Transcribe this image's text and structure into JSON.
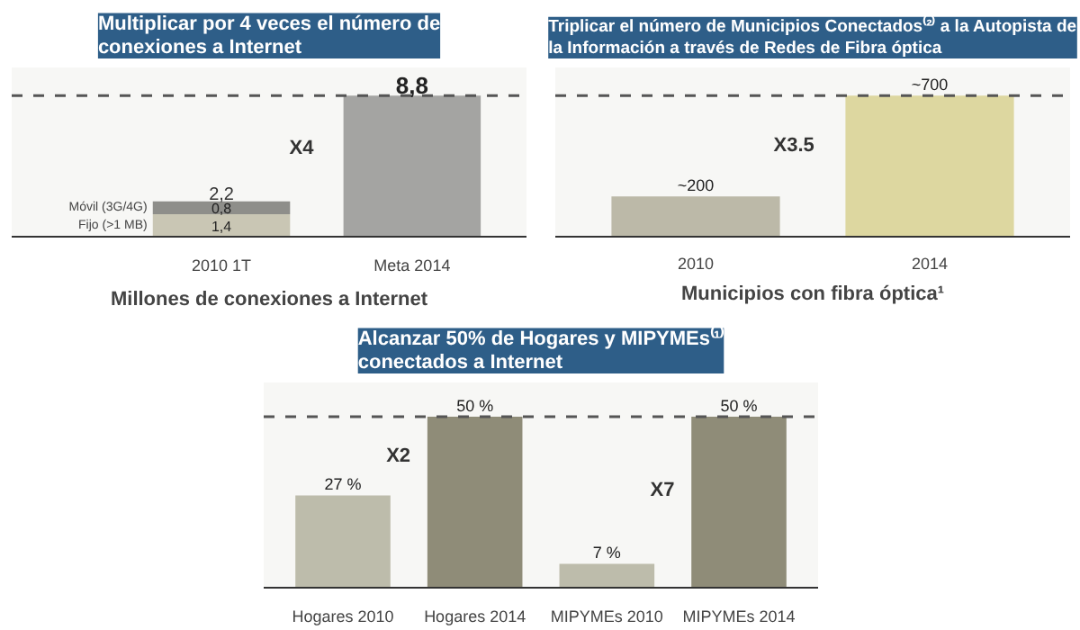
{
  "chart_data": [
    {
      "type": "bar",
      "title": "Multiplicar por 4 veces el número de conexiones a Internet",
      "xlabel": "Millones de conexiones a Internet",
      "categories": [
        "2010 1T",
        "Meta 2014"
      ],
      "stacked": true,
      "series": [
        {
          "name": "Fijo (>1 MB)",
          "color": "#c9c6b4",
          "values": [
            1.4,
            null
          ],
          "value_labels": [
            "1,4",
            null
          ]
        },
        {
          "name": "Móvil (3G/4G)",
          "color": "#8e8e8a",
          "values": [
            0.8,
            null
          ],
          "value_labels": [
            "0,8",
            null
          ]
        },
        {
          "color": "#a4a4a2",
          "values": [
            null,
            8.8
          ],
          "value_labels": [
            null,
            "8,8"
          ]
        }
      ],
      "totals": [
        "2,2",
        null
      ],
      "ref_lines": [
        {
          "axis": "y",
          "value": 8.8,
          "line_style": "dashed"
        }
      ],
      "annotations": [
        "X4"
      ],
      "grid": false
    },
    {
      "type": "bar",
      "title": "Triplicar el número de Municipios Conectados⁽²⁾ a la Autopista de la Información a través de Redes de Fibra óptica",
      "xlabel": "Municipios con fibra óptica¹",
      "categories": [
        "2010",
        "2014"
      ],
      "values": [
        200,
        700
      ],
      "colors": [
        "#bcb9a8",
        "#ddd7a0"
      ],
      "value_labels": [
        "~200",
        "~700"
      ],
      "ref_lines": [
        {
          "axis": "y",
          "value": 700,
          "line_style": "dashed"
        }
      ],
      "annotations": [
        "X3.5"
      ],
      "grid": false
    },
    {
      "type": "bar",
      "title": "Alcanzar 50% de Hogares y MIPYMEs⁽¹⁾ conectados a Internet",
      "categories": [
        "Hogares 2010",
        "Hogares 2014",
        "MIPYMEs 2010",
        "MIPYMEs 2014"
      ],
      "values": [
        27,
        50,
        7,
        50
      ],
      "colors": [
        "#bdbcab",
        "#8f8c78",
        "#bdbcab",
        "#8f8c78"
      ],
      "value_labels": [
        "27 %",
        "50 %",
        "7 %",
        "50 %"
      ],
      "ref_lines": [
        {
          "axis": "y",
          "value": 50,
          "line_style": "dashed"
        }
      ],
      "annotations": [
        "X2",
        "X7"
      ],
      "grid": false
    }
  ]
}
